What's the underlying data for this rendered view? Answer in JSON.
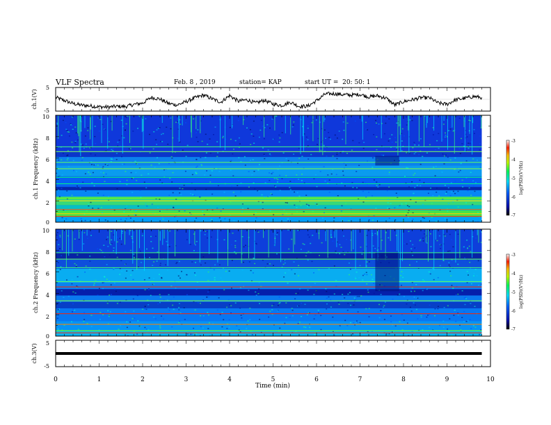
{
  "header": {
    "title": "VLF Spectra",
    "date": "Feb. 8 , 2019",
    "station": "station= KAP",
    "start": "start UT =  20: 50: 1"
  },
  "chart_data": [
    {
      "type": "line",
      "panel": "ch1-waveform",
      "ylabel": "ch.1(V)",
      "ylim": [
        -5,
        5
      ],
      "yticks": [
        "5",
        "-5"
      ],
      "series": [
        {
          "x": [
            0,
            0.2,
            0.4,
            0.6,
            0.8,
            1.0,
            1.2,
            1.4,
            1.6,
            1.8,
            2.0,
            2.2,
            2.4,
            2.6,
            2.8,
            3.0,
            3.2,
            3.4,
            3.6,
            3.8,
            4.0,
            4.2,
            4.4,
            4.6,
            4.8,
            5.0,
            5.2,
            5.4,
            5.6,
            5.8,
            6.0,
            6.2,
            6.4,
            6.6,
            6.8,
            7.0,
            7.2,
            7.4,
            7.6,
            7.8,
            8.0,
            8.2,
            8.4,
            8.6,
            8.8,
            9.0,
            9.2,
            9.4,
            9.6,
            9.8
          ],
          "values": [
            0.8,
            -0.5,
            -1.8,
            -2.5,
            -2.8,
            -3.2,
            -3.3,
            -3.0,
            -3.1,
            -2.2,
            -1.6,
            0.8,
            0.1,
            -1.8,
            -2.4,
            -1.0,
            0.6,
            1.8,
            0.2,
            -1.2,
            1.6,
            -0.8,
            -0.2,
            -1.6,
            -0.4,
            -2.0,
            -2.6,
            -1.2,
            -3.0,
            -2.9,
            -0.6,
            2.2,
            2.4,
            2.0,
            1.8,
            2.1,
            1.0,
            1.5,
            0.5,
            -2.4,
            -1.0,
            -0.2,
            0.7,
            0.6,
            -1.6,
            -2.1,
            -0.2,
            0.4,
            1.2,
            0.8
          ]
        }
      ]
    },
    {
      "type": "heatmap",
      "panel": "ch1-spectrogram",
      "ylabel": "ch.1 Frequency (kHz)",
      "ylim": [
        0,
        10
      ],
      "yticks": [
        "0",
        "2",
        "4",
        "6",
        "8",
        "10"
      ],
      "colorbar": {
        "label": "log(PSD)(V²/Hz)",
        "range": [
          -7,
          -3
        ],
        "ticks": [
          "-3",
          "-4",
          "-5",
          "-6",
          "-7"
        ]
      }
    },
    {
      "type": "heatmap",
      "panel": "ch2-spectrogram",
      "ylabel": "ch.2 Frequency (kHz)",
      "ylim": [
        0,
        10
      ],
      "yticks": [
        "0",
        "2",
        "4",
        "6",
        "8",
        "10"
      ],
      "colorbar": {
        "label": "log(PSD)(V²/Hz)",
        "range": [
          -7,
          -3
        ],
        "ticks": [
          "-3",
          "-4",
          "-5",
          "-6",
          "-7"
        ]
      }
    },
    {
      "type": "line",
      "panel": "ch3-waveform",
      "ylabel": "ch.3(V)",
      "ylim": [
        -5,
        5
      ],
      "yticks": [
        "5",
        "-5"
      ],
      "series": [
        {
          "x": [
            0,
            9.8
          ],
          "values": [
            0,
            0
          ]
        }
      ]
    }
  ],
  "xaxis": {
    "label": "Time (min)",
    "xlim": [
      0,
      10
    ],
    "ticks": [
      "0",
      "1",
      "2",
      "3",
      "4",
      "5",
      "6",
      "7",
      "8",
      "9",
      "10"
    ]
  },
  "colors": {
    "waveform": "#000000",
    "spectrum_background": "#1a3fd8",
    "colormap": [
      "#000a6e",
      "#0025ff",
      "#00b4ff",
      "#00ff8c",
      "#b4ff00",
      "#ffd200",
      "#ff2a00",
      "#ffffff"
    ]
  }
}
